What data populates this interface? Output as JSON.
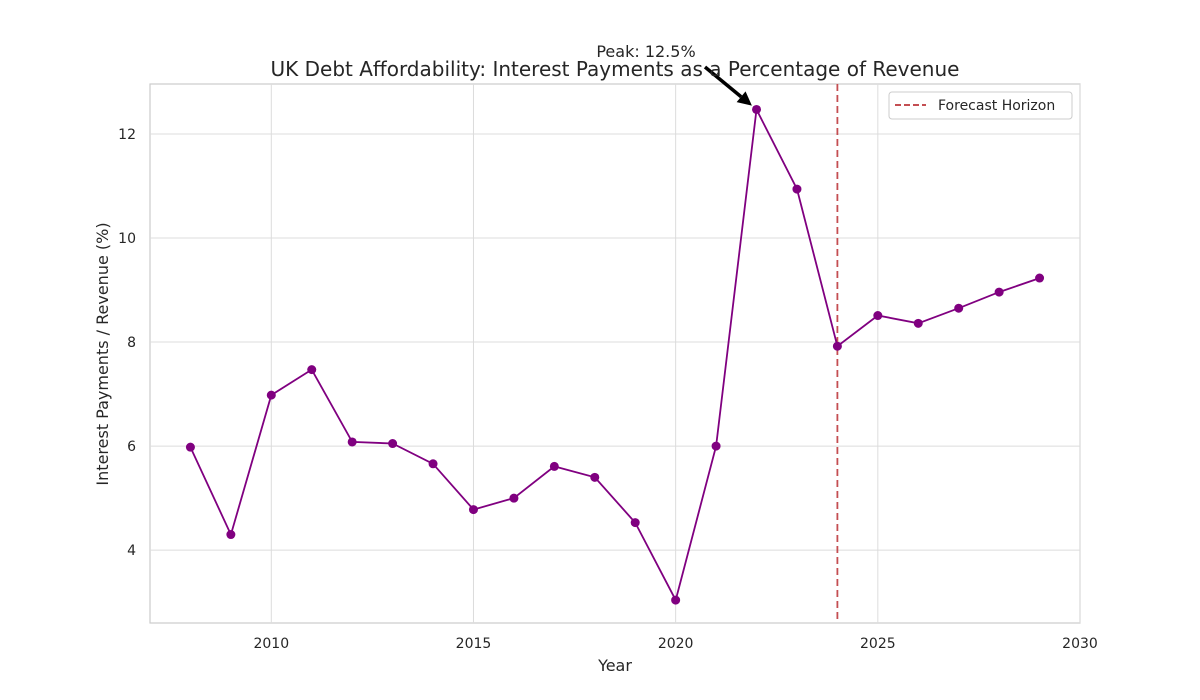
{
  "chart_data": {
    "type": "line",
    "title": "UK Debt Affordability: Interest Payments as a Percentage of Revenue",
    "xlabel": "Year",
    "ylabel": "Interest Payments / Revenue (%)",
    "xlim": [
      2007,
      2030
    ],
    "ylim": [
      2.6,
      12.96
    ],
    "x_ticks": [
      2010,
      2015,
      2020,
      2025,
      2030
    ],
    "y_ticks": [
      4,
      6,
      8,
      10,
      12
    ],
    "grid": true,
    "legend_placement": "top-right",
    "series": [
      {
        "color": "#800080",
        "x": [
          2008,
          2009,
          2010,
          2011,
          2012,
          2013,
          2014,
          2015,
          2016,
          2017,
          2018,
          2019,
          2020,
          2021,
          2022,
          2023,
          2024,
          2025,
          2026,
          2027,
          2028,
          2029
        ],
        "values": [
          5.98,
          4.3,
          6.98,
          7.47,
          6.08,
          6.05,
          5.66,
          4.78,
          5.0,
          5.61,
          5.4,
          4.53,
          3.04,
          6.0,
          12.47,
          10.94,
          7.92,
          8.51,
          8.36,
          8.65,
          8.96,
          9.23
        ]
      }
    ],
    "vline": {
      "x": 2024,
      "label": "Forecast Horizon",
      "color": "#c44e52"
    },
    "annotation": {
      "text": "Peak: 12.5%",
      "x": 2022,
      "y": 12.47
    }
  }
}
